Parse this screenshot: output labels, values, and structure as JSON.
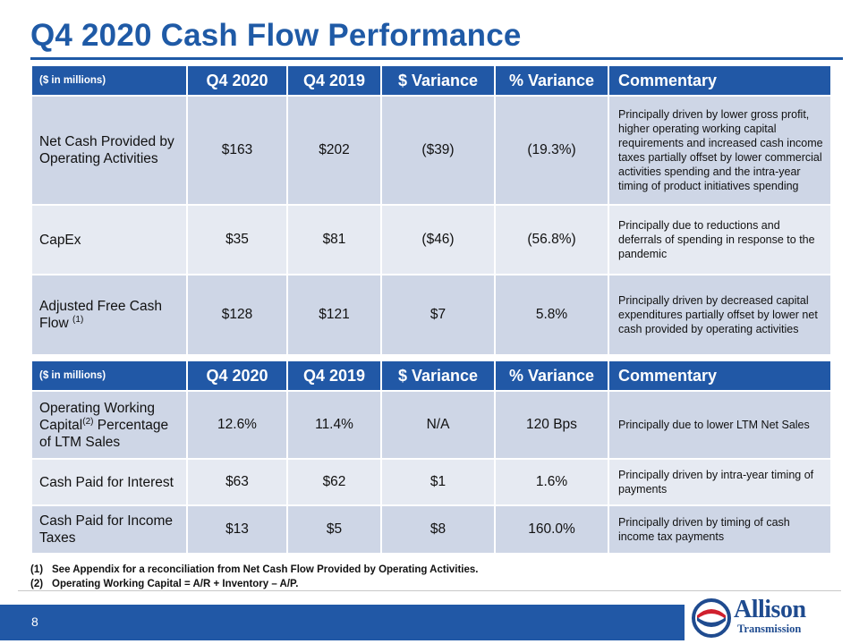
{
  "title": "Q4 2020 Cash Flow Performance",
  "table1": {
    "headers": [
      "($ in millions)",
      "Q4 2020",
      "Q4 2019",
      "$ Variance",
      "% Variance",
      "Commentary"
    ],
    "rows": [
      {
        "label": "Net Cash Provided by Operating Activities",
        "sup": "",
        "q4_2020": "$163",
        "q4_2019": "$202",
        "dollar_var": "($39)",
        "pct_var": "(19.3%)",
        "commentary": "Principally driven by lower gross profit, higher operating working capital requirements and increased cash income taxes partially offset by lower commercial activities spending and the intra-year timing of product initiatives spending"
      },
      {
        "label": "CapEx",
        "sup": "",
        "q4_2020": "$35",
        "q4_2019": "$81",
        "dollar_var": "($46)",
        "pct_var": "(56.8%)",
        "commentary": "Principally due to reductions and deferrals of spending in response to the pandemic"
      },
      {
        "label": "Adjusted Free Cash Flow",
        "sup": "(1)",
        "q4_2020": "$128",
        "q4_2019": "$121",
        "dollar_var": "$7",
        "pct_var": "5.8%",
        "commentary": "Principally driven by decreased capital expenditures partially offset by lower net cash provided by operating activities"
      }
    ]
  },
  "table2": {
    "headers": [
      "($ in millions)",
      "Q4 2020",
      "Q4 2019",
      "$ Variance",
      "% Variance",
      "Commentary"
    ],
    "rows": [
      {
        "label_a": "Operating Working Capital",
        "sup": "(2)",
        "label_b": " Percentage of LTM Sales",
        "q4_2020": "12.6%",
        "q4_2019": "11.4%",
        "dollar_var": "N/A",
        "pct_var": "120 Bps",
        "commentary": "Principally due to lower LTM Net Sales"
      },
      {
        "label_a": "Cash Paid for Interest",
        "sup": "",
        "label_b": "",
        "q4_2020": "$63",
        "q4_2019": "$62",
        "dollar_var": "$1",
        "pct_var": "1.6%",
        "commentary": "Principally driven by intra-year timing of payments"
      },
      {
        "label_a": "Cash Paid for Income Taxes",
        "sup": "",
        "label_b": "",
        "q4_2020": "$13",
        "q4_2019": "$5",
        "dollar_var": "$8",
        "pct_var": "160.0%",
        "commentary": "Principally driven by timing of cash income tax payments"
      }
    ]
  },
  "footnotes": [
    {
      "num": "(1)",
      "text": "See Appendix for a reconciliation from Net Cash Flow Provided by Operating Activities."
    },
    {
      "num": "(2)",
      "text": "Operating Working Capital = A/R + Inventory – A/P."
    }
  ],
  "page_number": "8",
  "logo": {
    "line1": "Allison",
    "line2": "Transmission",
    "colors": {
      "blue": "#1f4b8f",
      "red": "#d0202e"
    }
  }
}
